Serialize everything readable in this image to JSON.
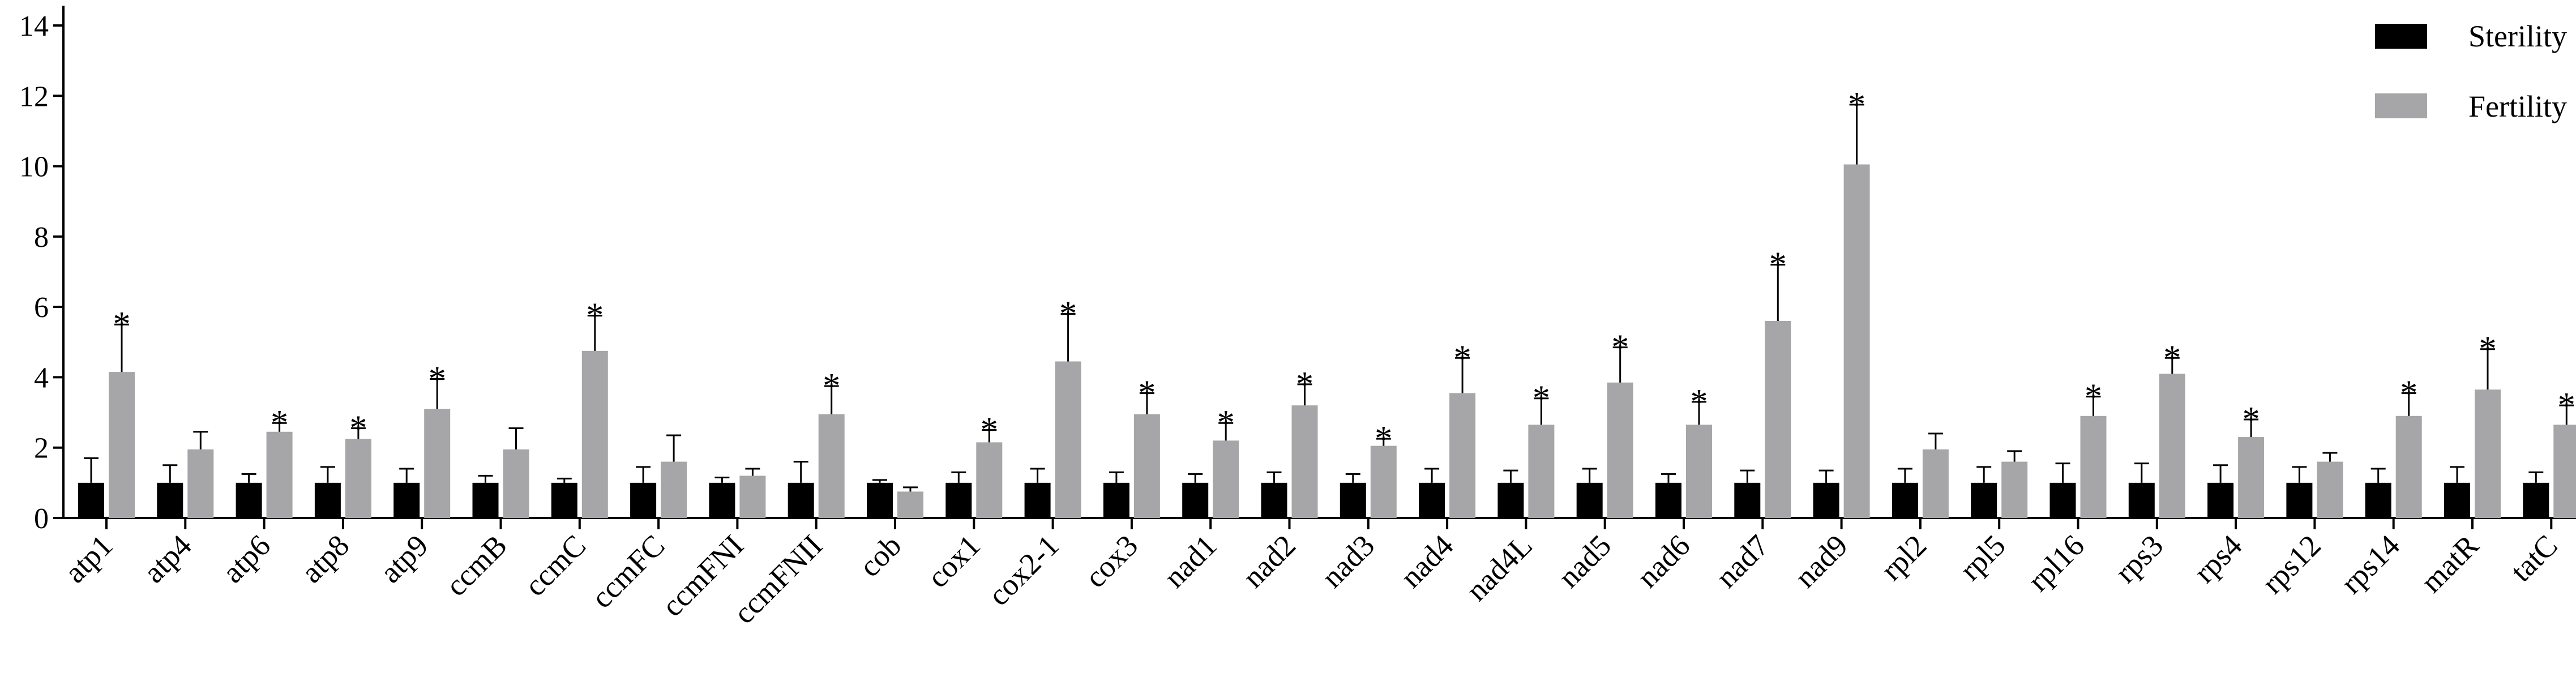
{
  "chart_data": {
    "type": "bar",
    "ylim": [
      0,
      15
    ],
    "yticks": [
      0,
      2,
      4,
      6,
      8,
      10,
      12,
      14
    ],
    "grid": false,
    "legend_position": "top-right",
    "categories": [
      "atp1",
      "atp4",
      "atp6",
      "atp8",
      "atp9",
      "ccmB",
      "ccmC",
      "ccmFC",
      "ccmFNI",
      "ccmFNII",
      "cob",
      "cox1",
      "cox2-1",
      "cox3",
      "nad1",
      "nad2",
      "nad3",
      "nad4",
      "nad4L",
      "nad5",
      "nad6",
      "nad7",
      "nad9",
      "rpl2",
      "rpl5",
      "rpl16",
      "rps3",
      "rps4",
      "rps12",
      "rps14",
      "matR",
      "tatC"
    ],
    "series": [
      {
        "name": "Sterility",
        "color": "#000000",
        "values": [
          1,
          1,
          1,
          1,
          1,
          1,
          1,
          1,
          1,
          1,
          1,
          1,
          1,
          1,
          1,
          1,
          1,
          1,
          1,
          1,
          1,
          1,
          1,
          1,
          1,
          1,
          1,
          1,
          1,
          1,
          1,
          1
        ],
        "errors": [
          0.7,
          0.5,
          0.25,
          0.45,
          0.4,
          0.2,
          0.12,
          0.45,
          0.15,
          0.6,
          0.08,
          0.3,
          0.4,
          0.3,
          0.25,
          0.3,
          0.25,
          0.4,
          0.35,
          0.4,
          0.25,
          0.35,
          0.35,
          0.4,
          0.45,
          0.55,
          0.55,
          0.5,
          0.45,
          0.4,
          0.45,
          0.3
        ]
      },
      {
        "name": "Fertility",
        "color": "#a6a6a8",
        "values": [
          4.15,
          1.95,
          2.45,
          2.25,
          3.1,
          1.95,
          4.75,
          1.6,
          1.2,
          2.95,
          0.75,
          2.15,
          4.45,
          2.95,
          2.2,
          3.2,
          2.05,
          3.55,
          2.65,
          3.85,
          2.65,
          5.6,
          10.05,
          1.95,
          1.6,
          2.9,
          4.1,
          2.3,
          1.6,
          2.9,
          3.65,
          2.65
        ],
        "errors": [
          1.35,
          0.5,
          0.25,
          0.3,
          0.85,
          0.6,
          1.0,
          0.75,
          0.2,
          0.8,
          0.12,
          0.35,
          1.35,
          0.6,
          0.5,
          0.6,
          0.2,
          1.0,
          0.75,
          1.0,
          0.65,
          1.6,
          1.7,
          0.45,
          0.3,
          0.55,
          0.45,
          0.5,
          0.25,
          0.65,
          1.15,
          0.55
        ],
        "significance": [
          "*",
          "",
          "*",
          "*",
          "*",
          "",
          "*",
          "",
          "",
          "*",
          "",
          "*",
          "*",
          "*",
          "*",
          "*",
          "*",
          "*",
          "*",
          "*",
          "*",
          "*",
          "*",
          "",
          "",
          "*",
          "*",
          "*",
          "",
          "*",
          "*",
          "*"
        ]
      }
    ]
  }
}
